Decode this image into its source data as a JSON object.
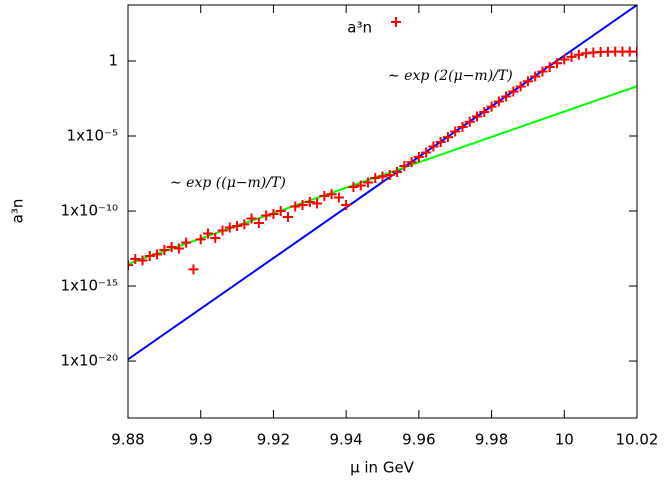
{
  "chart_data": {
    "type": "scatter",
    "xlabel": "μ in GeV",
    "ylabel": "a³n",
    "log_y": true,
    "grid": false,
    "legend": "top",
    "xlim": [
      9.88,
      10.02
    ],
    "xticks": [
      9.88,
      9.9,
      9.92,
      9.94,
      9.96,
      9.98,
      10,
      10.02
    ],
    "ylim": [
      1.6e-24,
      5400
    ],
    "yticks": [
      {
        "value": 1e-20,
        "label": "1x10⁻²⁰"
      },
      {
        "value": 1e-15,
        "label": "1x10⁻¹⁵"
      },
      {
        "value": 1e-10,
        "label": "1x10⁻¹⁰"
      },
      {
        "value": 1e-05,
        "label": "1x10⁻⁵"
      },
      1
    ],
    "annotations": [
      "∼ exp ((μ−m)/T)",
      "∼ exp (2(μ−m)/T)"
    ],
    "series": [
      {
        "name": "a³n",
        "color": "#ff0000",
        "marker": "+",
        "x": [
          9.88,
          9.882,
          9.884,
          9.886,
          9.888,
          9.89,
          9.892,
          9.894,
          9.896,
          9.898,
          9.9,
          9.902,
          9.904,
          9.906,
          9.908,
          9.91,
          9.912,
          9.914,
          9.916,
          9.918,
          9.92,
          9.922,
          9.924,
          9.926,
          9.928,
          9.93,
          9.932,
          9.934,
          9.936,
          9.938,
          9.94,
          9.942,
          9.944,
          9.946,
          9.948,
          9.95,
          9.952,
          9.954,
          9.956,
          9.958,
          9.96,
          9.962,
          9.964,
          9.966,
          9.968,
          9.97,
          9.972,
          9.974,
          9.976,
          9.978,
          9.98,
          9.982,
          9.984,
          9.986,
          9.988,
          9.99,
          9.992,
          9.994,
          9.996,
          9.998,
          10,
          10.002,
          10.004,
          10.006,
          10.008,
          10.01,
          10.012,
          10.014,
          10.016,
          10.018,
          10.02
        ],
        "values": [
          2.5e-14,
          6.3e-14,
          5e-14,
          1e-13,
          1.3e-13,
          2.5e-13,
          4e-13,
          3.2e-13,
          7.9e-13,
          1.3e-14,
          1.3e-12,
          3.2e-12,
          1.6e-12,
          5e-12,
          7.9e-12,
          1e-11,
          1.3e-11,
          3.2e-11,
          1.6e-11,
          5e-11,
          6.3e-11,
          1e-10,
          4e-11,
          2e-10,
          2.5e-10,
          4e-10,
          3.2e-10,
          1e-09,
          1.3e-09,
          7.9e-10,
          2.5e-10,
          4e-09,
          5e-09,
          7.9e-09,
          1.6e-08,
          2e-08,
          2.5e-08,
          4e-08,
          1e-07,
          1.8e-07,
          4e-07,
          7.9e-07,
          2e-06,
          4e-06,
          8.5e-06,
          2e-05,
          4e-05,
          8.9e-05,
          0.0002,
          0.0004,
          0.00091,
          0.002,
          0.0043,
          0.0093,
          0.02,
          0.045,
          0.093,
          0.2,
          0.4,
          0.71,
          1.26,
          1.9,
          2.6,
          3.3,
          3.7,
          4,
          4.1,
          4.2,
          4.2,
          4.2,
          4.2
        ]
      },
      {
        "type": "line",
        "color": "#0000ff",
        "x": [
          9.88,
          10.02
        ],
        "values": [
          1.3e-20,
          5400
        ]
      },
      {
        "type": "line",
        "color": "#00ff00",
        "x": [
          9.88,
          10.02
        ],
        "values": [
          3e-14,
          0.021
        ]
      }
    ]
  }
}
